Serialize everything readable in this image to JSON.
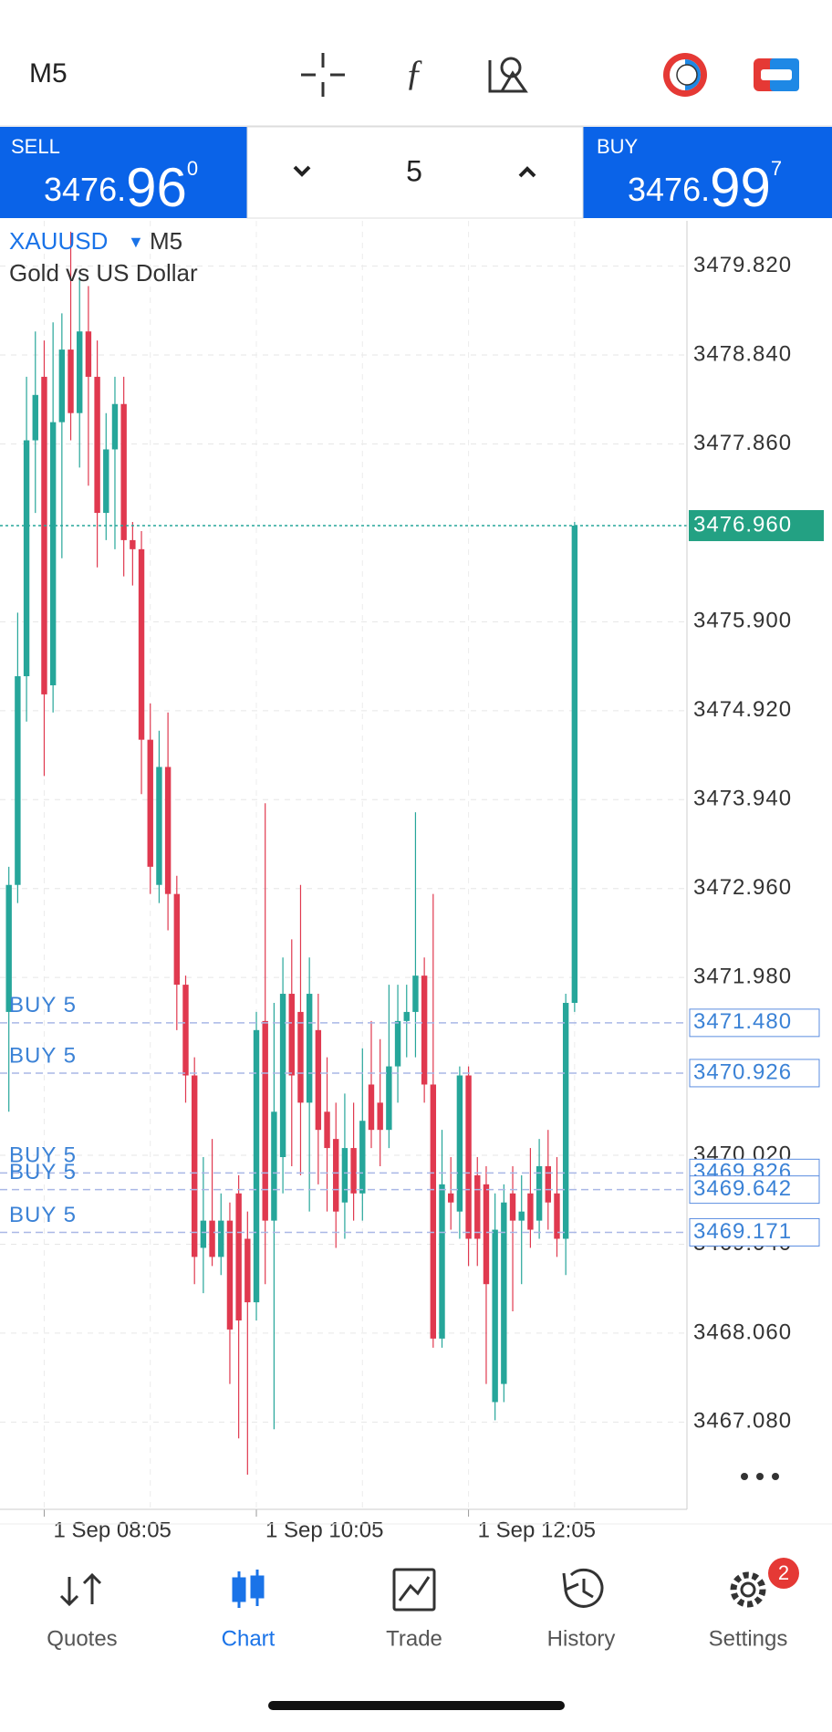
{
  "header": {
    "timeframe": "M5"
  },
  "trade_panel": {
    "sell": {
      "label": "SELL",
      "price_main": "3476.",
      "price_big": "96",
      "price_sup": "0"
    },
    "lot": "5",
    "buy": {
      "label": "BUY",
      "price_main": "3476.",
      "price_big": "99",
      "price_sup": "7"
    }
  },
  "chart_data": {
    "type": "candlestick",
    "symbol": "XAUUSD",
    "timeframe": "M5",
    "description": "Gold vs US Dollar",
    "up_color": "#26a69a",
    "down_color": "#e0394f",
    "categories": [
      null,
      null,
      null,
      null,
      "1 Sep 08:05",
      null,
      null,
      null,
      null,
      null,
      null,
      null,
      null,
      null,
      null,
      null,
      null,
      null,
      null,
      null,
      null,
      null,
      null,
      null,
      null,
      null,
      null,
      null,
      "1 Sep 10:05",
      null,
      null,
      null,
      null,
      null,
      null,
      null,
      null,
      null,
      null,
      null,
      null,
      null,
      null,
      null,
      null,
      null,
      null,
      null,
      null,
      null,
      null,
      null,
      "1 Sep 12:05",
      null,
      null,
      null,
      null,
      null,
      null,
      null,
      null,
      null,
      null,
      null,
      null
    ],
    "open": [
      3471.6,
      3473.0,
      3475.3,
      3477.9,
      3478.6,
      3475.2,
      3478.1,
      3478.9,
      3478.2,
      3479.1,
      3478.6,
      3477.1,
      3477.8,
      3478.3,
      3476.8,
      3476.7,
      3474.6,
      3473.0,
      3474.3,
      3472.9,
      3471.9,
      3470.9,
      3469.0,
      3469.3,
      3468.9,
      3469.3,
      3469.6,
      3469.1,
      3468.4,
      3471.5,
      3469.3,
      3470.0,
      3471.8,
      3471.6,
      3470.6,
      3471.4,
      3470.5,
      3470.2,
      3469.5,
      3470.1,
      3469.6,
      3470.8,
      3470.6,
      3470.3,
      3471.0,
      3471.5,
      3471.6,
      3472.0,
      3470.8,
      3468.0,
      3469.6,
      3469.4,
      3470.9,
      3469.8,
      3469.7,
      3467.3,
      3467.5,
      3469.6,
      3469.3,
      3469.6,
      3469.3,
      3469.9,
      3469.6,
      3469.1,
      3471.7
    ],
    "high": [
      3473.2,
      3476.0,
      3478.6,
      3479.1,
      3479.0,
      3479.2,
      3479.3,
      3480.2,
      3479.7,
      3479.6,
      3479.0,
      3478.2,
      3478.6,
      3478.6,
      3477.0,
      3476.9,
      3475.0,
      3474.7,
      3474.9,
      3473.1,
      3472.0,
      3471.1,
      3470.0,
      3470.2,
      3469.6,
      3469.5,
      3469.8,
      3469.4,
      3471.6,
      3473.9,
      3471.7,
      3472.2,
      3472.4,
      3473.0,
      3472.2,
      3471.8,
      3471.1,
      3470.6,
      3470.7,
      3470.6,
      3471.2,
      3471.5,
      3471.3,
      3471.9,
      3471.9,
      3471.9,
      3473.8,
      3472.2,
      3472.9,
      3470.3,
      3470.0,
      3471.0,
      3471.0,
      3470.0,
      3469.9,
      3469.6,
      3469.7,
      3469.9,
      3469.8,
      3470.1,
      3470.2,
      3470.3,
      3470.0,
      3471.8,
      3477.0
    ],
    "low": [
      3470.5,
      3472.8,
      3474.8,
      3477.1,
      3474.2,
      3474.9,
      3476.6,
      3477.9,
      3477.6,
      3477.4,
      3476.5,
      3476.8,
      3476.7,
      3476.4,
      3476.3,
      3474.0,
      3472.9,
      3472.8,
      3472.5,
      3471.4,
      3470.6,
      3468.6,
      3468.5,
      3468.8,
      3468.7,
      3467.5,
      3466.9,
      3466.5,
      3468.2,
      3468.6,
      3467.0,
      3469.6,
      3469.9,
      3469.8,
      3469.4,
      3469.7,
      3469.4,
      3469.0,
      3469.1,
      3469.3,
      3469.3,
      3470.1,
      3469.9,
      3470.1,
      3470.6,
      3471.1,
      3471.1,
      3470.6,
      3467.9,
      3467.9,
      3469.2,
      3469.1,
      3468.8,
      3468.8,
      3467.5,
      3467.1,
      3467.3,
      3468.3,
      3468.6,
      3469.0,
      3469.1,
      3469.2,
      3468.9,
      3468.7,
      3471.6
    ],
    "close": [
      3473.0,
      3475.3,
      3477.9,
      3478.4,
      3475.1,
      3478.1,
      3478.9,
      3478.2,
      3479.1,
      3478.6,
      3477.1,
      3477.8,
      3478.3,
      3476.8,
      3476.7,
      3474.6,
      3473.2,
      3474.3,
      3472.9,
      3471.9,
      3470.9,
      3468.9,
      3469.3,
      3468.9,
      3469.3,
      3468.1,
      3468.2,
      3468.4,
      3471.4,
      3469.3,
      3470.5,
      3471.8,
      3470.9,
      3470.6,
      3471.8,
      3470.3,
      3470.1,
      3469.4,
      3470.1,
      3469.6,
      3470.4,
      3470.3,
      3470.3,
      3471.0,
      3471.5,
      3471.6,
      3472.0,
      3470.8,
      3468.0,
      3469.7,
      3469.5,
      3470.9,
      3469.1,
      3469.1,
      3468.6,
      3469.2,
      3469.5,
      3469.3,
      3469.4,
      3469.2,
      3469.9,
      3469.5,
      3469.1,
      3471.7,
      3476.96
    ],
    "ylim": [
      3466.118,
      3480.319
    ],
    "yticks": [
      {
        "value": 3479.82,
        "label": "3479.820"
      },
      {
        "value": 3478.84,
        "label": "3478.840"
      },
      {
        "value": 3477.86,
        "label": "3477.860"
      },
      {
        "value": 3475.9,
        "label": "3475.900"
      },
      {
        "value": 3474.92,
        "label": "3474.920"
      },
      {
        "value": 3473.94,
        "label": "3473.940"
      },
      {
        "value": 3472.96,
        "label": "3472.960"
      },
      {
        "value": 3471.98,
        "label": "3471.980"
      },
      {
        "value": 3470.02,
        "label": "3470.020"
      },
      {
        "value": 3469.04,
        "label": "3469.040"
      },
      {
        "value": 3468.06,
        "label": "3468.060"
      },
      {
        "value": 3467.08,
        "label": "3467.080"
      }
    ],
    "grid": true,
    "last_price": {
      "value": 3476.96,
      "label": "3476.960"
    },
    "orders": [
      {
        "label": "BUY 5",
        "price": {
          "value": 3471.48,
          "label": "3471.480"
        }
      },
      {
        "label": "BUY 5",
        "price": {
          "value": 3470.926,
          "label": "3470.926"
        }
      },
      {
        "label": "BUY 5",
        "price": {
          "value": 3469.826,
          "label": "3469.826"
        }
      },
      {
        "label": "BUY 5",
        "price": {
          "value": 3469.642,
          "label": "3469.642"
        }
      },
      {
        "label": "BUY 5",
        "price": {
          "value": 3469.171,
          "label": "3469.171"
        }
      }
    ]
  },
  "nav": {
    "items": [
      "Quotes",
      "Chart",
      "Trade",
      "History",
      "Settings"
    ],
    "badge": "2"
  }
}
